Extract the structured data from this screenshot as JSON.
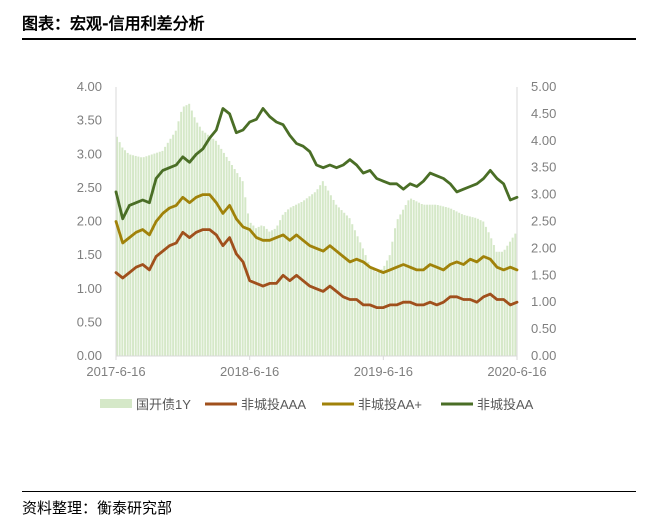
{
  "header": {
    "title": "图表：宏观-信用利差分析"
  },
  "footer": {
    "source": "资料整理：衡泰研究部"
  },
  "colors": {
    "bar": "#d5e8c8",
    "aaa": "#a0501c",
    "aa_plus": "#a0820a",
    "aa": "#4a6e26",
    "axis_text": "#7f7f7f",
    "axis_line": "#d9d9d9"
  },
  "chart_data": {
    "type": "bar+line",
    "x_ticks": [
      "2017-6-16",
      "2018-6-16",
      "2019-6-16",
      "2020-6-16"
    ],
    "x_range": [
      "2017-6-16",
      "2020-6-16"
    ],
    "y_left": {
      "range": [
        0,
        4
      ],
      "ticks": [
        "0.00",
        "0.50",
        "1.00",
        "1.50",
        "2.00",
        "2.50",
        "3.00",
        "3.50",
        "4.00"
      ]
    },
    "y_right": {
      "range": [
        0,
        5
      ],
      "ticks": [
        "0.00",
        "0.50",
        "1.00",
        "1.50",
        "2.00",
        "2.50",
        "3.00",
        "3.50",
        "4.00",
        "4.50",
        "5.00"
      ]
    },
    "legend_position": "bottom",
    "series": [
      {
        "name": "国开债1Y",
        "type": "bar",
        "axis": "left",
        "t": [
          0,
          0.05,
          0.1,
          0.2,
          0.35,
          0.45,
          0.5,
          0.55,
          0.6,
          0.65,
          0.75,
          0.85,
          0.95,
          1.0,
          1.05,
          1.1,
          1.15,
          1.2,
          1.25,
          1.3,
          1.4,
          1.5,
          1.55,
          1.65,
          1.75,
          1.85,
          1.9,
          1.95,
          2.0,
          2.05,
          2.1,
          2.2,
          2.3,
          2.4,
          2.5,
          2.6,
          2.7,
          2.75,
          2.8,
          2.85,
          2.9,
          2.95,
          3.0
        ],
        "values": [
          3.3,
          3.1,
          3.0,
          2.95,
          3.05,
          3.35,
          3.7,
          3.75,
          3.5,
          3.35,
          3.2,
          2.9,
          2.6,
          2.0,
          1.9,
          1.95,
          1.85,
          1.9,
          2.1,
          2.2,
          2.3,
          2.45,
          2.6,
          2.25,
          2.05,
          1.6,
          1.35,
          1.25,
          1.3,
          1.5,
          2.0,
          2.35,
          2.25,
          2.25,
          2.2,
          2.1,
          2.05,
          2.0,
          1.8,
          1.55,
          1.55,
          1.7,
          1.85
        ]
      },
      {
        "name": "非城投AAA",
        "type": "line",
        "axis": "right",
        "t": [
          0,
          0.05,
          0.1,
          0.15,
          0.2,
          0.25,
          0.3,
          0.35,
          0.4,
          0.45,
          0.5,
          0.55,
          0.6,
          0.65,
          0.7,
          0.75,
          0.8,
          0.85,
          0.9,
          0.95,
          1.0,
          1.05,
          1.1,
          1.15,
          1.2,
          1.25,
          1.3,
          1.35,
          1.4,
          1.45,
          1.5,
          1.55,
          1.6,
          1.65,
          1.7,
          1.75,
          1.8,
          1.85,
          1.9,
          1.95,
          2.0,
          2.05,
          2.1,
          2.15,
          2.2,
          2.25,
          2.3,
          2.35,
          2.4,
          2.45,
          2.5,
          2.55,
          2.6,
          2.65,
          2.7,
          2.75,
          2.8,
          2.85,
          2.9,
          2.95,
          3.0
        ],
        "values": [
          1.55,
          1.45,
          1.55,
          1.65,
          1.7,
          1.6,
          1.85,
          1.95,
          2.05,
          2.1,
          2.3,
          2.2,
          2.3,
          2.35,
          2.35,
          2.25,
          2.05,
          2.2,
          1.9,
          1.75,
          1.4,
          1.35,
          1.3,
          1.35,
          1.35,
          1.5,
          1.4,
          1.5,
          1.4,
          1.3,
          1.25,
          1.2,
          1.3,
          1.2,
          1.1,
          1.05,
          1.05,
          0.95,
          0.95,
          0.9,
          0.9,
          0.95,
          0.95,
          1.0,
          1.0,
          0.95,
          0.95,
          1.0,
          0.95,
          1.0,
          1.1,
          1.1,
          1.05,
          1.05,
          1.0,
          1.1,
          1.15,
          1.05,
          1.05,
          0.95,
          1.0
        ]
      },
      {
        "name": "非城投AA+",
        "type": "line",
        "axis": "right",
        "t": [
          0,
          0.05,
          0.1,
          0.15,
          0.2,
          0.25,
          0.3,
          0.35,
          0.4,
          0.45,
          0.5,
          0.55,
          0.6,
          0.65,
          0.7,
          0.75,
          0.8,
          0.85,
          0.9,
          0.95,
          1.0,
          1.05,
          1.1,
          1.15,
          1.2,
          1.25,
          1.3,
          1.35,
          1.4,
          1.45,
          1.5,
          1.55,
          1.6,
          1.65,
          1.7,
          1.75,
          1.8,
          1.85,
          1.9,
          1.95,
          2.0,
          2.05,
          2.1,
          2.15,
          2.2,
          2.25,
          2.3,
          2.35,
          2.4,
          2.45,
          2.5,
          2.55,
          2.6,
          2.65,
          2.7,
          2.75,
          2.8,
          2.85,
          2.9,
          2.95,
          3.0
        ],
        "values": [
          2.5,
          2.1,
          2.2,
          2.3,
          2.35,
          2.25,
          2.5,
          2.65,
          2.75,
          2.8,
          2.95,
          2.85,
          2.95,
          3.0,
          3.0,
          2.85,
          2.65,
          2.8,
          2.55,
          2.4,
          2.35,
          2.2,
          2.15,
          2.15,
          2.2,
          2.25,
          2.15,
          2.25,
          2.15,
          2.05,
          2.0,
          1.95,
          2.05,
          1.95,
          1.85,
          1.75,
          1.8,
          1.75,
          1.65,
          1.6,
          1.55,
          1.6,
          1.65,
          1.7,
          1.65,
          1.6,
          1.6,
          1.7,
          1.65,
          1.6,
          1.7,
          1.75,
          1.7,
          1.8,
          1.75,
          1.85,
          1.8,
          1.65,
          1.6,
          1.65,
          1.6
        ]
      },
      {
        "name": "非城投AA",
        "type": "line",
        "axis": "right",
        "t": [
          0,
          0.05,
          0.1,
          0.15,
          0.2,
          0.25,
          0.3,
          0.35,
          0.4,
          0.45,
          0.5,
          0.55,
          0.6,
          0.65,
          0.7,
          0.75,
          0.8,
          0.85,
          0.9,
          0.95,
          1.0,
          1.05,
          1.1,
          1.15,
          1.2,
          1.25,
          1.3,
          1.35,
          1.4,
          1.45,
          1.5,
          1.55,
          1.6,
          1.65,
          1.7,
          1.75,
          1.8,
          1.85,
          1.9,
          1.95,
          2.0,
          2.05,
          2.1,
          2.15,
          2.2,
          2.25,
          2.3,
          2.35,
          2.4,
          2.45,
          2.5,
          2.55,
          2.6,
          2.65,
          2.7,
          2.75,
          2.8,
          2.85,
          2.9,
          2.95,
          3.0
        ],
        "values": [
          3.05,
          2.55,
          2.8,
          2.85,
          2.9,
          2.85,
          3.3,
          3.45,
          3.5,
          3.55,
          3.7,
          3.6,
          3.75,
          3.85,
          4.05,
          4.2,
          4.6,
          4.5,
          4.15,
          4.2,
          4.35,
          4.4,
          4.6,
          4.45,
          4.35,
          4.3,
          4.1,
          3.95,
          3.9,
          3.8,
          3.55,
          3.5,
          3.55,
          3.5,
          3.55,
          3.65,
          3.55,
          3.4,
          3.45,
          3.3,
          3.25,
          3.2,
          3.2,
          3.1,
          3.2,
          3.15,
          3.25,
          3.4,
          3.35,
          3.3,
          3.2,
          3.05,
          3.1,
          3.15,
          3.2,
          3.3,
          3.45,
          3.3,
          3.2,
          2.9,
          2.95
        ]
      }
    ]
  }
}
